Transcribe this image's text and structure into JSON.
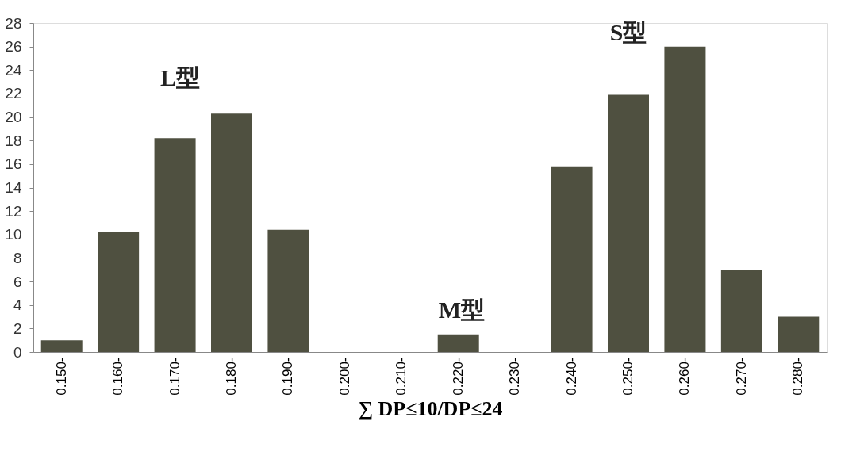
{
  "chart_data": {
    "type": "bar",
    "xlabel": "∑ DP≤10/DP≤24",
    "categories": [
      "0.150-",
      "0.160-",
      "0.170-",
      "0.180-",
      "0.190-",
      "0.200-",
      "0.210-",
      "0.220-",
      "0.230-",
      "0.240-",
      "0.250-",
      "0.260-",
      "0.270-",
      "0.280-"
    ],
    "values": [
      1,
      10.2,
      18.2,
      20.3,
      10.4,
      null,
      null,
      1.5,
      null,
      15.8,
      21.9,
      26,
      7,
      3
    ],
    "color": "#4f5040",
    "ylim": [
      0,
      28
    ],
    "yticks": [
      0,
      2,
      4,
      6,
      8,
      10,
      12,
      14,
      16,
      18,
      20,
      22,
      24,
      26,
      28
    ],
    "grid": false,
    "annotations": [
      "L型",
      "M型",
      "S型"
    ]
  }
}
